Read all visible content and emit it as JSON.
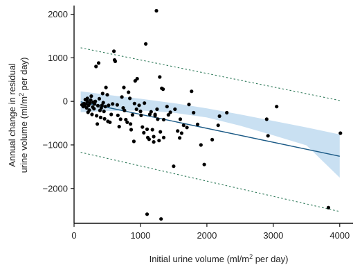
{
  "chart_data": {
    "type": "scatter",
    "title": "",
    "xlabel": "Initial urine volume (ml/m2 per day)",
    "xlabel_parts": {
      "pre": "Initial urine volume (ml/m",
      "sup": "2",
      "post": " per day)"
    },
    "ylabel_line1": "Annual change in residual",
    "ylabel_line2_parts": {
      "pre": "urine volume (ml/m",
      "sup": "2",
      "post": " per day)"
    },
    "xlim": [
      0,
      4200
    ],
    "ylim": [
      -2800,
      2200
    ],
    "xticks": [
      0,
      1000,
      2000,
      3000,
      4000
    ],
    "xtick_labels": [
      "0",
      "1000",
      "2000",
      "3000",
      "4000"
    ],
    "yticks": [
      -2000,
      -1000,
      0,
      1000,
      2000
    ],
    "ytick_labels": [
      "−2000",
      "−1000",
      "0",
      "1000",
      "2000"
    ],
    "grid": false,
    "regression": {
      "x": [
        100,
        4000
      ],
      "y": [
        -10,
        -1260
      ]
    },
    "confidence_band": {
      "x": [
        100,
        500,
        1000,
        1500,
        2000,
        2500,
        3000,
        3500,
        4000
      ],
      "upper": [
        230,
        150,
        60,
        -40,
        -160,
        -300,
        -450,
        -600,
        -760
      ],
      "lower": [
        -250,
        -220,
        -210,
        -260,
        -370,
        -560,
        -780,
        -1010,
        -1750
      ]
    },
    "prediction_interval": {
      "upper": {
        "x": [
          100,
          4000
        ],
        "y": [
          1230,
          20
        ]
      },
      "lower": {
        "x": [
          100,
          4000
        ],
        "y": [
          -1170,
          -2530
        ]
      }
    },
    "points": {
      "x": [
        120,
        140,
        150,
        160,
        170,
        180,
        190,
        200,
        200,
        210,
        220,
        230,
        240,
        250,
        260,
        270,
        280,
        290,
        300,
        310,
        320,
        330,
        340,
        350,
        360,
        370,
        380,
        390,
        400,
        410,
        420,
        430,
        440,
        450,
        460,
        470,
        480,
        500,
        510,
        520,
        540,
        560,
        580,
        600,
        610,
        620,
        650,
        660,
        680,
        700,
        720,
        740,
        750,
        760,
        780,
        800,
        820,
        840,
        850,
        860,
        880,
        900,
        910,
        920,
        940,
        950,
        980,
        1000,
        1010,
        1030,
        1050,
        1060,
        1080,
        1100,
        1110,
        1130,
        1140,
        1160,
        1180,
        1200,
        1220,
        1240,
        1250,
        1260,
        1280,
        1290,
        1300,
        1320,
        1340,
        1350,
        1400,
        1420,
        1450,
        1500,
        1520,
        1560,
        1590,
        1600,
        1620,
        1650,
        1700,
        1730,
        1770,
        1800,
        1860,
        1910,
        1960,
        2080,
        2170,
        2190,
        2300,
        2900,
        2920,
        3050,
        3830,
        4010,
        1100,
        1200,
        1220,
        1310,
        1350
      ],
      "y": [
        -80,
        -120,
        -50,
        -100,
        40,
        -60,
        -150,
        0,
        70,
        -250,
        -90,
        -200,
        -40,
        30,
        120,
        -300,
        -130,
        -20,
        -170,
        -60,
        0,
        800,
        -330,
        -520,
        -100,
        880,
        60,
        -210,
        -370,
        -150,
        -90,
        180,
        -30,
        -230,
        -400,
        -120,
        320,
        150,
        -460,
        -90,
        -480,
        -300,
        -60,
        1150,
        950,
        920,
        -80,
        -320,
        -580,
        -410,
        100,
        -150,
        320,
        -210,
        -420,
        -480,
        210,
        70,
        -520,
        -650,
        -310,
        -920,
        -50,
        470,
        -180,
        520,
        -90,
        -230,
        -320,
        -590,
        -720,
        -40,
        1320,
        -640,
        -830,
        -870,
        -300,
        -240,
        -650,
        -810,
        -330,
        2080,
        -180,
        -410,
        -900,
        560,
        -700,
        300,
        280,
        -830,
        -120,
        -310,
        -250,
        -1490,
        -180,
        -680,
        -840,
        -410,
        -730,
        -550,
        -600,
        -70,
        230,
        -260,
        -530,
        -1000,
        -1450,
        -880,
        -550,
        -340,
        -260,
        -410,
        -790,
        -120,
        -2440,
        -730,
        -2590,
        -930,
        -300,
        -2700,
        -420
      ]
    }
  }
}
